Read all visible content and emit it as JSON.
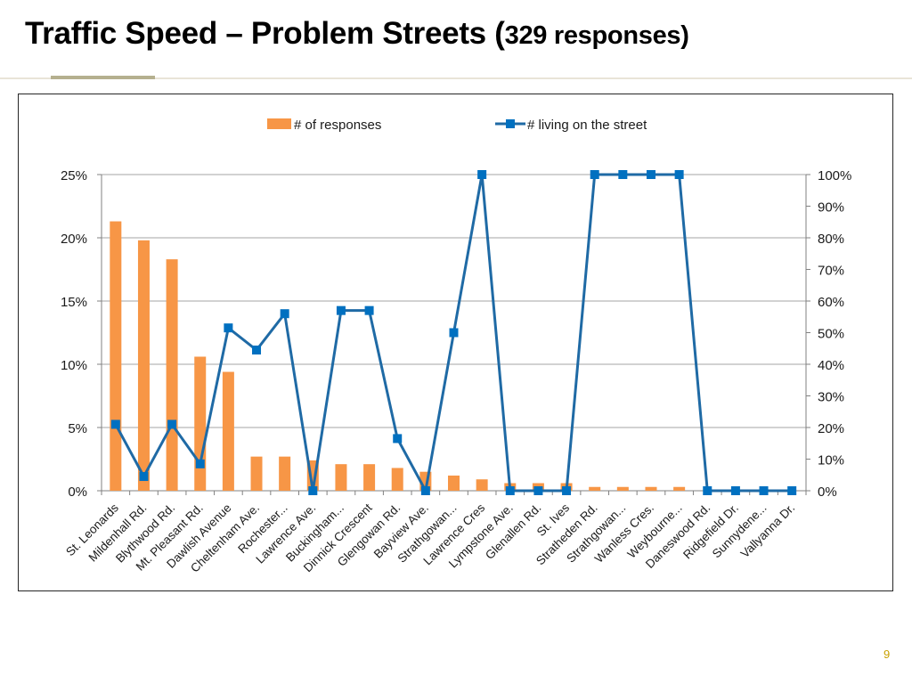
{
  "slide": {
    "title_main": "Traffic Speed – Problem Streets (",
    "title_sub": "329 responses)",
    "page_number": "9"
  },
  "colors": {
    "bar": "#f79646",
    "line": "#1f6aa5",
    "marker": "#0070c0",
    "grid": "#a6a6a6",
    "axis_text": "#1a1a1a",
    "accent_rule": "#b5b08f",
    "page_number": "#c8a000"
  },
  "chart_data": {
    "type": "bar",
    "title": "",
    "categories": [
      "St. Leonards",
      "Mildenhall Rd.",
      "Blythwood Rd.",
      "Mt. Pleasant Rd.",
      "Dawlish Avenue",
      "Cheltenham Ave.",
      "Rochester...",
      "Lawrence Ave.",
      "Buckingham...",
      "Dinnick Crescent",
      "Glengowan Rd.",
      "Bayview Ave.",
      "Strathgowan...",
      "Lawrence Cres",
      "Lympstone Ave.",
      "Glenallen Rd.",
      "St. Ives",
      "Stratheden Rd.",
      "Strathgowan...",
      "Wanless Cres.",
      "Weybourne...",
      "Daneswood Rd.",
      "Ridgefield Dr.",
      "Sunnydene...",
      "Vallyanna Dr."
    ],
    "series": [
      {
        "name": "# of responses",
        "type": "bar",
        "axis": "left",
        "values": [
          21.3,
          19.8,
          18.3,
          10.6,
          9.4,
          2.7,
          2.7,
          2.4,
          2.1,
          2.1,
          1.8,
          1.5,
          1.2,
          0.9,
          0.6,
          0.6,
          0.6,
          0.3,
          0.3,
          0.3,
          0.3,
          0.0,
          0.0,
          0.0,
          0.0
        ]
      },
      {
        "name": "# living on the street",
        "type": "line",
        "axis": "right",
        "values": [
          21,
          4.5,
          21,
          8.5,
          51.5,
          44.5,
          56,
          0,
          57,
          57,
          16.5,
          0,
          50,
          100,
          0,
          0,
          0,
          100,
          100,
          100,
          100,
          0,
          0,
          0,
          0
        ]
      }
    ],
    "y_left": {
      "ylim": [
        0,
        25
      ],
      "ticks": [
        0,
        5,
        10,
        15,
        20,
        25
      ],
      "tick_labels": [
        "0%",
        "5%",
        "10%",
        "15%",
        "20%",
        "25%"
      ]
    },
    "y_right": {
      "ylim": [
        0,
        100
      ],
      "ticks": [
        0,
        10,
        20,
        30,
        40,
        50,
        60,
        70,
        80,
        90,
        100
      ],
      "tick_labels": [
        "0%",
        "10%",
        "20%",
        "30%",
        "40%",
        "50%",
        "60%",
        "70%",
        "80%",
        "90%",
        "100%"
      ]
    },
    "grid": true,
    "legend_position": "top"
  }
}
